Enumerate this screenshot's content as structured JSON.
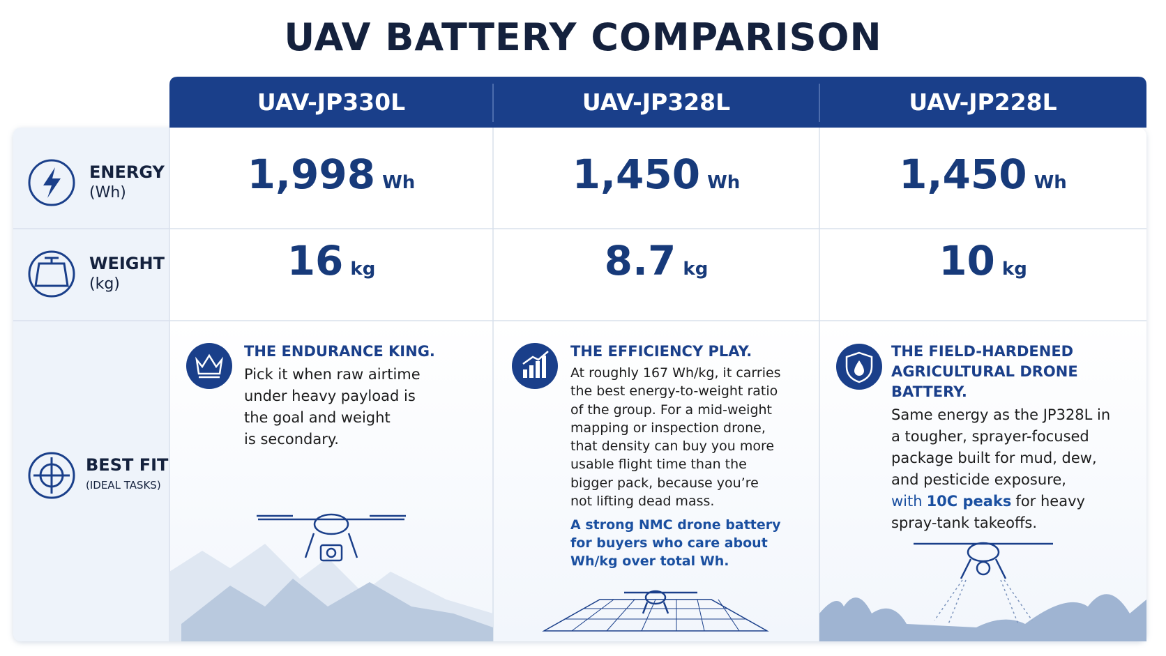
{
  "title": "UAV BATTERY COMPARISON",
  "table": {
    "columns": [
      "UAV-JP330L",
      "UAV-JP328L",
      "UAV-JP228L"
    ],
    "rows": [
      {
        "label": "ENERGY",
        "sub_label": "(Wh)",
        "cells": [
          {
            "value": "1,998",
            "unit": "Wh"
          },
          {
            "value": "1,450",
            "unit": "Wh"
          },
          {
            "value": "1,450",
            "unit": "Wh"
          }
        ]
      },
      {
        "label": "WEIGHT",
        "sub_label": "(kg)",
        "cells": [
          {
            "value": "16",
            "unit": "kg"
          },
          {
            "value": "8.7",
            "unit": "kg"
          },
          {
            "value": "10",
            "unit": "kg"
          }
        ]
      },
      {
        "label": "BEST FIT",
        "sub_label": "(IDEAL TASKS)",
        "cells": [
          {
            "heading": [
              "THE ENDURANCE KING."
            ],
            "body": [
              "Pick it when raw airtime",
              "under heavy payload is",
              "the goal and weight",
              "is secondary."
            ]
          },
          {
            "heading": [
              "THE EFFICIENCY PLAY."
            ],
            "body": [
              "At roughly 167 Wh/kg, it carries",
              "the best energy-to-weight ratio",
              "of the group. For a mid-weight",
              "mapping or inspection drone,",
              "that density can buy you more",
              "usable flight time than the",
              "bigger pack, because you’re",
              "not lifting dead mass."
            ],
            "note": [
              "A strong NMC drone battery",
              "for buyers who care about",
              "Wh/kg over total Wh."
            ]
          },
          {
            "heading": [
              "THE FIELD-HARDENED",
              "AGRICULTURAL DRONE BATTERY."
            ],
            "body": [
              "Same energy as the JP328L in",
              "a tougher, sprayer-focused",
              "package built for mud, dew,",
              "and pesticide exposure,"
            ],
            "highlight_line": {
              "lead": "with",
              "emphasis": "10C peaks",
              "rest": "for heavy"
            },
            "closing": "spray-tank takeoffs."
          }
        ]
      }
    ]
  }
}
